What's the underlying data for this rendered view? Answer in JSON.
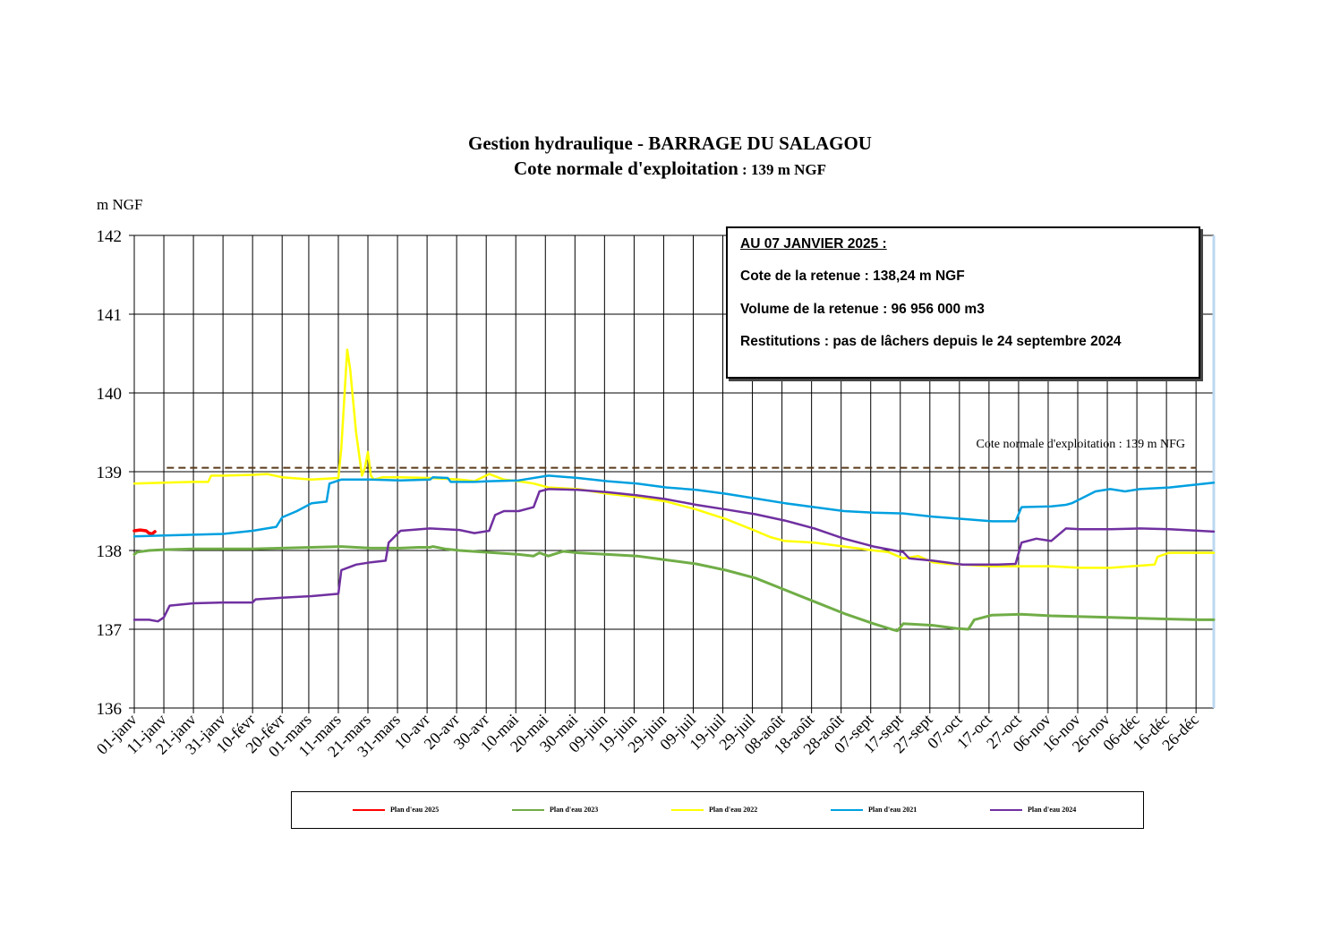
{
  "title_line1": "Gestion hydraulique - BARRAGE DU SALAGOU",
  "title_line2_main": "Cote normale d'exploitation",
  "title_line2_suffix": " : 139 m NGF",
  "info_box": {
    "heading": "AU 07 JANVIER 2025 :",
    "cote": "Cote de la retenue : 138,24 m NGF",
    "volume": "Volume de la retenue : 96 956 000 m3",
    "restitutions": "Restitutions : pas de lâchers depuis le 24 septembre 2024"
  },
  "chart_data": {
    "type": "line",
    "ylabel": "m NGF",
    "ylim": [
      136,
      142
    ],
    "yticks": [
      "136",
      "137",
      "138",
      "139",
      "140",
      "141",
      "142"
    ],
    "xlim": [
      0,
      365
    ],
    "grid": true,
    "x_tick_days": [
      0,
      10,
      20,
      30,
      40,
      50,
      59,
      69,
      79,
      89,
      99,
      109,
      119,
      129,
      139,
      149,
      159,
      169,
      179,
      189,
      199,
      209,
      219,
      229,
      239,
      249,
      259,
      269,
      279,
      289,
      299,
      309,
      319,
      329,
      339,
      349,
      359
    ],
    "x_tick_labels": [
      "01-janv",
      "11-janv",
      "21-janv",
      "31-janv",
      "10-févr",
      "20-févr",
      "01-mars",
      "11-mars",
      "21-mars",
      "31-mars",
      "10-avr",
      "20-avr",
      "30-avr",
      "10-mai",
      "20-mai",
      "30-mai",
      "09-juin",
      "19-juin",
      "29-juin",
      "09-juil",
      "19-juil",
      "29-juil",
      "08-août",
      "18-août",
      "28-août",
      "07-sept",
      "17-sept",
      "27-sept",
      "07-oct",
      "17-oct",
      "27-oct",
      "06-nov",
      "16-nov",
      "26-nov",
      "06-déc",
      "16-déc",
      "26-déc"
    ],
    "reference_line": {
      "y": 139.05,
      "label": "Cote normale d'exploitation : 139 m NFG",
      "color": "#5a3a1a"
    },
    "series": [
      {
        "name": "Plan d'eau 2025",
        "color": "#ff0000",
        "width": 3.5,
        "x": [
          0,
          2,
          4,
          5,
          6,
          7
        ],
        "y": [
          138.25,
          138.26,
          138.25,
          138.22,
          138.21,
          138.24
        ]
      },
      {
        "name": "Plan d'eau 2023",
        "color": "#70ad47",
        "width": 3,
        "x": [
          0,
          1,
          5,
          10,
          20,
          30,
          40,
          50,
          60,
          70,
          80,
          90,
          96,
          100,
          101,
          105,
          110,
          130,
          135,
          137,
          140,
          145,
          150,
          160,
          170,
          180,
          190,
          200,
          210,
          220,
          230,
          240,
          250,
          256,
          258,
          260,
          270,
          278,
          282,
          284,
          290,
          300,
          310,
          320,
          330,
          340,
          350,
          360,
          365
        ],
        "y": [
          137.95,
          137.98,
          138.0,
          138.01,
          138.02,
          138.02,
          138.02,
          138.03,
          138.04,
          138.05,
          138.03,
          138.03,
          138.04,
          138.04,
          138.05,
          138.02,
          138.0,
          137.95,
          137.93,
          137.97,
          137.93,
          137.99,
          137.97,
          137.95,
          137.93,
          137.88,
          137.83,
          137.75,
          137.65,
          137.5,
          137.35,
          137.2,
          137.07,
          137.0,
          136.98,
          137.07,
          137.05,
          137.01,
          137.0,
          137.12,
          137.18,
          137.19,
          137.17,
          137.16,
          137.15,
          137.14,
          137.13,
          137.12,
          137.12
        ]
      },
      {
        "name": "Plan d'eau 2022",
        "color": "#ffff00",
        "width": 2.5,
        "x": [
          0,
          10,
          20,
          25,
          26,
          30,
          40,
          45,
          50,
          60,
          69,
          70,
          72,
          73,
          75,
          77,
          78,
          79,
          80,
          81,
          84,
          90,
          100,
          110,
          115,
          120,
          125,
          130,
          135,
          140,
          150,
          160,
          170,
          180,
          190,
          200,
          210,
          215,
          220,
          230,
          240,
          250,
          255,
          260,
          265,
          270,
          275,
          280,
          290,
          300,
          310,
          320,
          330,
          345,
          346,
          350,
          365
        ],
        "y": [
          138.85,
          138.86,
          138.87,
          138.87,
          138.95,
          138.95,
          138.96,
          138.97,
          138.93,
          138.9,
          138.92,
          139.3,
          140.55,
          140.3,
          139.5,
          138.95,
          139.05,
          139.25,
          138.95,
          138.9,
          138.93,
          138.93,
          138.92,
          138.9,
          138.88,
          138.97,
          138.9,
          138.88,
          138.85,
          138.8,
          138.78,
          138.72,
          138.68,
          138.62,
          138.52,
          138.4,
          138.25,
          138.17,
          138.12,
          138.1,
          138.05,
          138.0,
          137.98,
          137.9,
          137.93,
          137.85,
          137.83,
          137.82,
          137.8,
          137.8,
          137.8,
          137.78,
          137.78,
          137.82,
          137.92,
          137.97,
          137.97
        ]
      },
      {
        "name": "Plan d'eau 2021",
        "color": "#00a0e0",
        "width": 2.5,
        "x": [
          0,
          10,
          20,
          30,
          40,
          48,
          50,
          55,
          60,
          65,
          66,
          70,
          80,
          90,
          100,
          101,
          106,
          107,
          110,
          115,
          120,
          130,
          140,
          150,
          160,
          170,
          180,
          190,
          200,
          210,
          220,
          230,
          240,
          250,
          260,
          270,
          280,
          290,
          298,
          300,
          310,
          315,
          317,
          325,
          330,
          335,
          340,
          350,
          365
        ],
        "y": [
          138.18,
          138.19,
          138.2,
          138.21,
          138.25,
          138.3,
          138.42,
          138.5,
          138.6,
          138.62,
          138.85,
          138.9,
          138.9,
          138.89,
          138.9,
          138.93,
          138.92,
          138.87,
          138.87,
          138.87,
          138.88,
          138.89,
          138.95,
          138.92,
          138.88,
          138.85,
          138.8,
          138.77,
          138.72,
          138.66,
          138.6,
          138.55,
          138.5,
          138.48,
          138.47,
          138.43,
          138.4,
          138.37,
          138.37,
          138.55,
          138.56,
          138.58,
          138.6,
          138.75,
          138.78,
          138.75,
          138.78,
          138.8,
          138.86
        ]
      },
      {
        "name": "Plan d'eau 2024",
        "color": "#7030a0",
        "width": 2.5,
        "x": [
          0,
          5,
          8,
          10,
          12,
          20,
          30,
          40,
          41,
          50,
          60,
          69,
          70,
          75,
          80,
          85,
          86,
          90,
          100,
          110,
          115,
          120,
          122,
          125,
          130,
          135,
          137,
          140,
          150,
          160,
          170,
          180,
          190,
          200,
          210,
          220,
          230,
          240,
          250,
          260,
          262,
          270,
          280,
          292,
          298,
          300,
          305,
          310,
          315,
          320,
          330,
          340,
          350,
          360,
          365
        ],
        "y": [
          137.12,
          137.12,
          137.1,
          137.15,
          137.3,
          137.33,
          137.34,
          137.34,
          137.38,
          137.4,
          137.42,
          137.45,
          137.75,
          137.82,
          137.85,
          137.87,
          138.1,
          138.25,
          138.28,
          138.26,
          138.22,
          138.25,
          138.45,
          138.5,
          138.5,
          138.55,
          138.75,
          138.78,
          138.77,
          138.74,
          138.7,
          138.65,
          138.58,
          138.52,
          138.46,
          138.38,
          138.28,
          138.15,
          138.05,
          137.98,
          137.9,
          137.87,
          137.82,
          137.82,
          137.83,
          138.1,
          138.15,
          138.12,
          138.28,
          138.27,
          138.27,
          138.28,
          138.27,
          138.25,
          138.24
        ]
      }
    ]
  }
}
